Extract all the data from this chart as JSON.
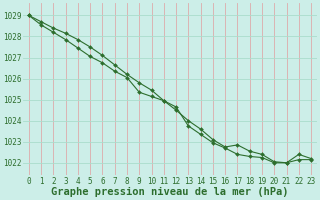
{
  "xlabel": "Graphe pression niveau de la mer (hPa)",
  "bg_color": "#cceee8",
  "grid_color_h": "#aaddcc",
  "grid_color_v": "#ddaaaa",
  "line_color": "#2d6e2d",
  "xmin": -0.5,
  "xmax": 23.5,
  "ymin": 1021.4,
  "ymax": 1029.6,
  "yticks": [
    1022,
    1023,
    1024,
    1025,
    1026,
    1027,
    1028,
    1029
  ],
  "xticks": [
    0,
    1,
    2,
    3,
    4,
    5,
    6,
    7,
    8,
    9,
    10,
    11,
    12,
    13,
    14,
    15,
    16,
    17,
    18,
    19,
    20,
    21,
    22,
    23
  ],
  "series1": [
    1029.0,
    1028.7,
    1028.4,
    1028.15,
    1027.85,
    1027.5,
    1027.1,
    1026.65,
    1026.2,
    1025.8,
    1025.45,
    1024.95,
    1024.5,
    1024.0,
    1023.6,
    1023.1,
    1022.75,
    1022.85,
    1022.55,
    1022.4,
    1022.05,
    1022.0,
    1022.4,
    1022.2
  ],
  "series2": [
    1029.0,
    1028.55,
    1028.2,
    1027.85,
    1027.45,
    1027.05,
    1026.75,
    1026.35,
    1026.05,
    1025.35,
    1025.15,
    1024.95,
    1024.65,
    1023.75,
    1023.35,
    1022.95,
    1022.7,
    1022.4,
    1022.3,
    1022.25,
    1022.0,
    1022.0,
    1022.15,
    1022.15
  ],
  "marker": "D",
  "marker_size": 2.0,
  "line_width": 0.8,
  "font_family": "monospace",
  "xlabel_fontsize": 7.5,
  "tick_fontsize": 5.5
}
